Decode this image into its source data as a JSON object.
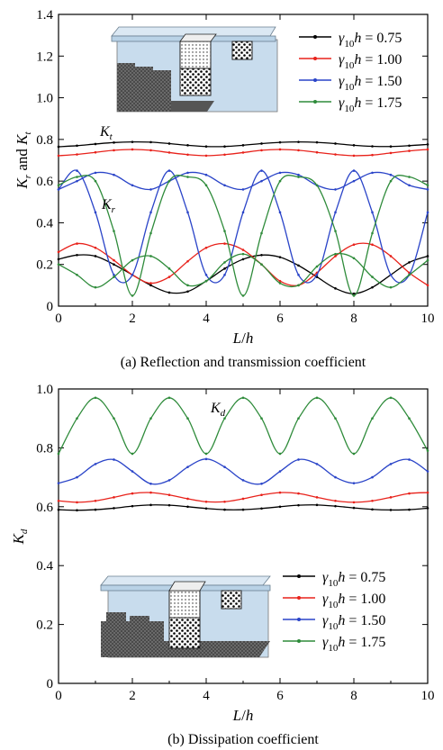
{
  "chart_data": [
    {
      "type": "line",
      "caption": "(a) Reflection and transmission coefficient",
      "xlabel": "L/h",
      "ylabel": "K_r and K_t",
      "xlim": [
        0,
        10
      ],
      "ylim": [
        0,
        1.4
      ],
      "x_ticks": [
        "0",
        "2",
        "4",
        "6",
        "8",
        "10"
      ],
      "y_ticks": [
        "0",
        "0.2",
        "0.4",
        "0.6",
        "0.8",
        "1.0",
        "1.2",
        "1.4"
      ],
      "grid": false,
      "legend_position": "top-right",
      "annotations": [
        "K_t",
        "K_r"
      ],
      "series": [
        {
          "name": "γ10h = 0.75",
          "color": "#000000",
          "Kt": [
            0.765,
            0.77,
            0.778,
            0.785,
            0.788,
            0.787,
            0.78,
            0.772,
            0.766,
            0.766,
            0.772,
            0.78,
            0.786,
            0.788,
            0.786,
            0.78,
            0.772,
            0.767,
            0.766,
            0.77,
            0.776
          ],
          "Kr": [
            0.225,
            0.245,
            0.24,
            0.2,
            0.15,
            0.1,
            0.065,
            0.07,
            0.12,
            0.18,
            0.225,
            0.245,
            0.235,
            0.195,
            0.14,
            0.085,
            0.06,
            0.09,
            0.15,
            0.21,
            0.24
          ]
        },
        {
          "name": "γ10h = 1.00",
          "color": "#e8221b",
          "Kt": [
            0.722,
            0.728,
            0.738,
            0.748,
            0.752,
            0.748,
            0.737,
            0.727,
            0.722,
            0.727,
            0.737,
            0.748,
            0.752,
            0.748,
            0.738,
            0.728,
            0.722,
            0.725,
            0.735,
            0.745,
            0.752
          ],
          "Kr": [
            0.26,
            0.3,
            0.28,
            0.22,
            0.15,
            0.11,
            0.14,
            0.215,
            0.28,
            0.3,
            0.27,
            0.2,
            0.12,
            0.1,
            0.16,
            0.24,
            0.295,
            0.295,
            0.24,
            0.16,
            0.1
          ]
        },
        {
          "name": "γ10h = 1.50",
          "color": "#2a44c8",
          "Kt": [
            0.56,
            0.6,
            0.64,
            0.63,
            0.58,
            0.56,
            0.6,
            0.64,
            0.63,
            0.58,
            0.56,
            0.6,
            0.64,
            0.63,
            0.58,
            0.56,
            0.6,
            0.64,
            0.63,
            0.58,
            0.56
          ],
          "Kr": [
            0.56,
            0.65,
            0.45,
            0.15,
            0.15,
            0.45,
            0.65,
            0.45,
            0.15,
            0.15,
            0.45,
            0.65,
            0.45,
            0.15,
            0.15,
            0.45,
            0.65,
            0.45,
            0.15,
            0.15,
            0.45
          ]
        },
        {
          "name": "γ10h = 1.75",
          "color": "#2e8b3a",
          "Kt": [
            0.58,
            0.62,
            0.6,
            0.36,
            0.05,
            0.35,
            0.6,
            0.62,
            0.58,
            0.36,
            0.05,
            0.35,
            0.6,
            0.62,
            0.58,
            0.36,
            0.05,
            0.35,
            0.6,
            0.62,
            0.58
          ],
          "Kr": [
            0.2,
            0.15,
            0.09,
            0.14,
            0.22,
            0.24,
            0.18,
            0.1,
            0.12,
            0.21,
            0.25,
            0.2,
            0.11,
            0.1,
            0.19,
            0.25,
            0.23,
            0.14,
            0.09,
            0.15,
            0.22
          ]
        }
      ]
    },
    {
      "type": "line",
      "caption": "(b) Dissipation coefficient",
      "xlabel": "L/h",
      "ylabel": "K_d",
      "xlim": [
        0,
        10
      ],
      "ylim": [
        0,
        1.0
      ],
      "x_ticks": [
        "0",
        "2",
        "4",
        "6",
        "8",
        "10"
      ],
      "y_ticks": [
        "0",
        "0.2",
        "0.4",
        "0.6",
        "0.8",
        "1.0"
      ],
      "grid": false,
      "legend_position": "bottom-right",
      "annotations": [
        "K_d"
      ],
      "series": [
        {
          "name": "γ10h = 0.75",
          "color": "#000000",
          "values": [
            0.59,
            0.588,
            0.59,
            0.595,
            0.602,
            0.606,
            0.605,
            0.6,
            0.594,
            0.59,
            0.59,
            0.594,
            0.6,
            0.605,
            0.606,
            0.602,
            0.596,
            0.591,
            0.589,
            0.59,
            0.595
          ]
        },
        {
          "name": "γ10h = 1.00",
          "color": "#e8221b",
          "values": [
            0.62,
            0.615,
            0.62,
            0.632,
            0.645,
            0.648,
            0.64,
            0.627,
            0.617,
            0.617,
            0.627,
            0.64,
            0.648,
            0.645,
            0.632,
            0.62,
            0.615,
            0.62,
            0.632,
            0.645,
            0.648
          ]
        },
        {
          "name": "γ10h = 1.50",
          "color": "#2a44c8",
          "values": [
            0.68,
            0.7,
            0.745,
            0.76,
            0.72,
            0.678,
            0.69,
            0.735,
            0.762,
            0.735,
            0.69,
            0.678,
            0.72,
            0.76,
            0.745,
            0.7,
            0.68,
            0.7,
            0.745,
            0.76,
            0.72
          ]
        },
        {
          "name": "γ10h = 1.75",
          "color": "#2e8b3a",
          "values": [
            0.78,
            0.9,
            0.97,
            0.9,
            0.78,
            0.9,
            0.97,
            0.9,
            0.78,
            0.9,
            0.97,
            0.9,
            0.78,
            0.9,
            0.97,
            0.9,
            0.78,
            0.9,
            0.97,
            0.9,
            0.79
          ]
        }
      ]
    }
  ]
}
